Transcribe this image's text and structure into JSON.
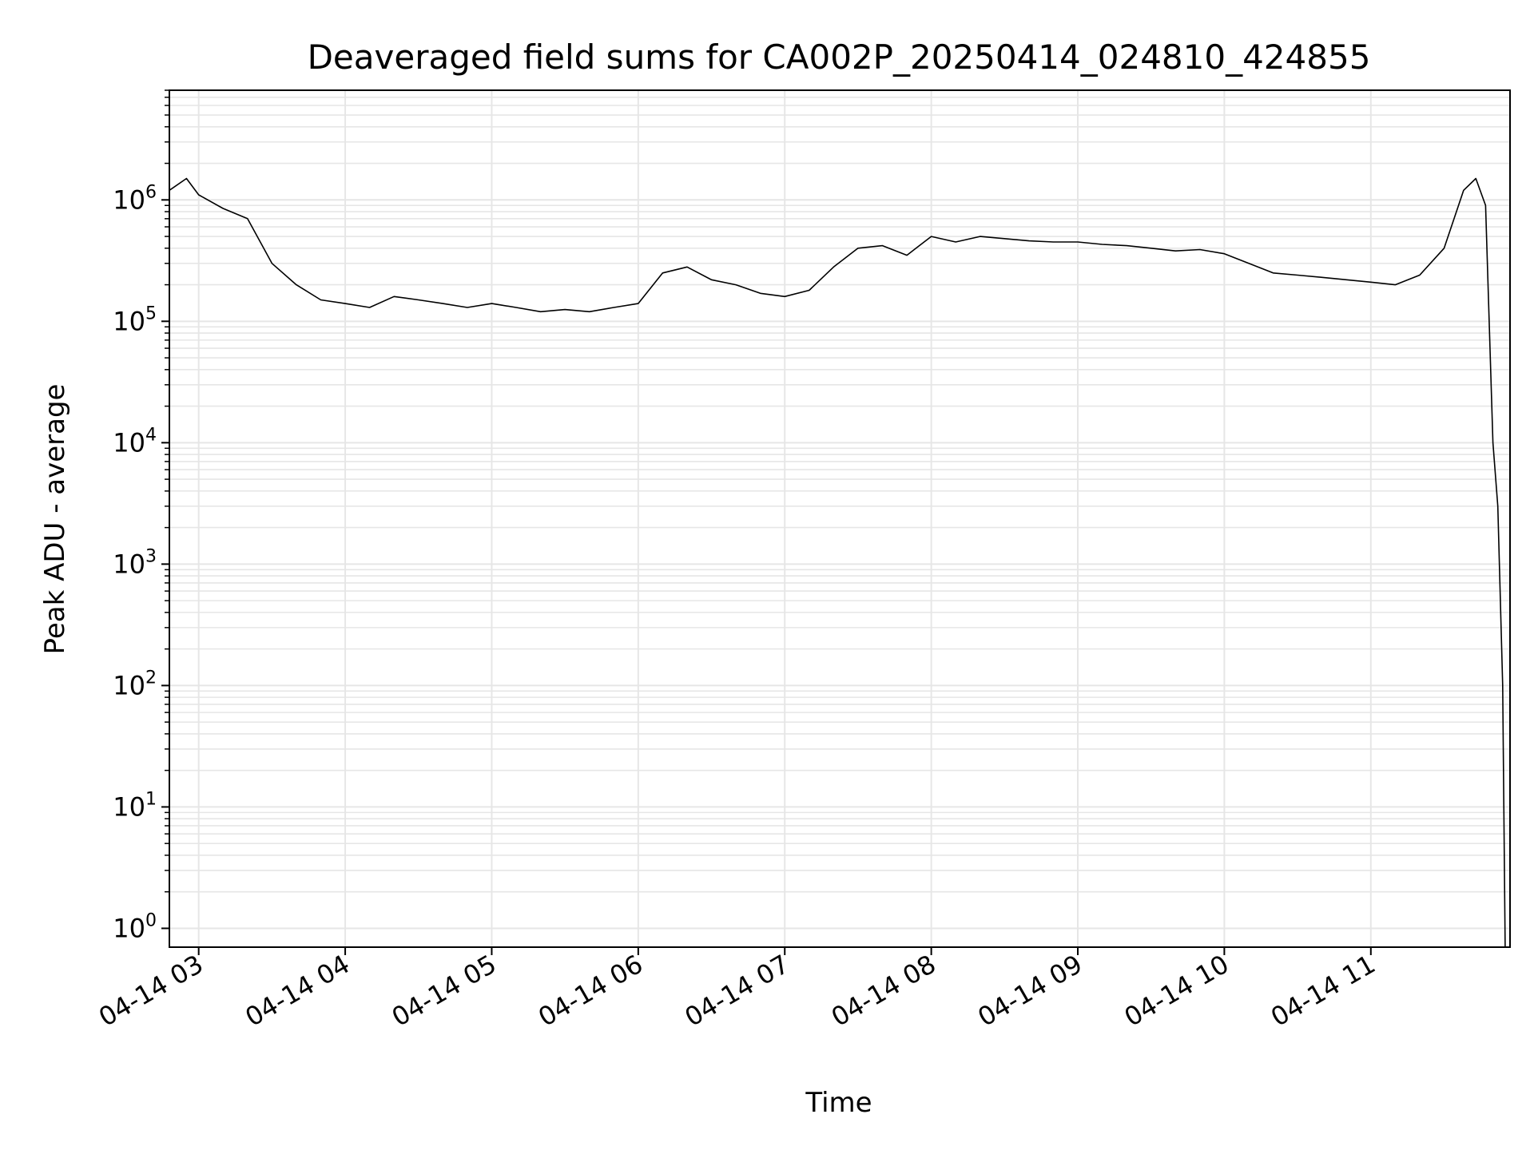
{
  "chart_data": {
    "type": "line",
    "title": "Deaveraged field sums for CA002P_20250414_024810_424855",
    "xlabel": "Time",
    "ylabel": "Peak ADU - average",
    "y_scale": "log",
    "ylim": [
      0.7,
      8000000
    ],
    "xlim": [
      "2025-04-14T02:48",
      "2025-04-14T11:57"
    ],
    "grid": true,
    "line_color": "#000000",
    "grid_color": "#e6e6e6",
    "x_ticks": [
      "04-14 03",
      "04-14 04",
      "04-14 05",
      "04-14 06",
      "04-14 07",
      "04-14 08",
      "04-14 09",
      "04-14 10",
      "04-14 11"
    ],
    "x_tick_times": [
      "2025-04-14T03:00",
      "2025-04-14T04:00",
      "2025-04-14T05:00",
      "2025-04-14T06:00",
      "2025-04-14T07:00",
      "2025-04-14T08:00",
      "2025-04-14T09:00",
      "2025-04-14T10:00",
      "2025-04-14T11:00"
    ],
    "y_ticks": [
      {
        "base": "10",
        "exp": "0",
        "value": 1
      },
      {
        "base": "10",
        "exp": "1",
        "value": 10
      },
      {
        "base": "10",
        "exp": "2",
        "value": 100
      },
      {
        "base": "10",
        "exp": "3",
        "value": 1000
      },
      {
        "base": "10",
        "exp": "4",
        "value": 10000
      },
      {
        "base": "10",
        "exp": "5",
        "value": 100000
      },
      {
        "base": "10",
        "exp": "6",
        "value": 1000000
      }
    ],
    "series": [
      {
        "x": [
          "2025-04-14T02:48",
          "2025-04-14T02:55",
          "2025-04-14T03:00",
          "2025-04-14T03:10",
          "2025-04-14T03:20",
          "2025-04-14T03:30",
          "2025-04-14T03:40",
          "2025-04-14T03:50",
          "2025-04-14T04:00",
          "2025-04-14T04:10",
          "2025-04-14T04:20",
          "2025-04-14T04:30",
          "2025-04-14T04:40",
          "2025-04-14T04:50",
          "2025-04-14T05:00",
          "2025-04-14T05:10",
          "2025-04-14T05:20",
          "2025-04-14T05:30",
          "2025-04-14T05:40",
          "2025-04-14T05:50",
          "2025-04-14T06:00",
          "2025-04-14T06:10",
          "2025-04-14T06:20",
          "2025-04-14T06:30",
          "2025-04-14T06:40",
          "2025-04-14T06:50",
          "2025-04-14T07:00",
          "2025-04-14T07:10",
          "2025-04-14T07:20",
          "2025-04-14T07:30",
          "2025-04-14T07:40",
          "2025-04-14T07:50",
          "2025-04-14T08:00",
          "2025-04-14T08:10",
          "2025-04-14T08:20",
          "2025-04-14T08:30",
          "2025-04-14T08:40",
          "2025-04-14T08:50",
          "2025-04-14T09:00",
          "2025-04-14T09:10",
          "2025-04-14T09:20",
          "2025-04-14T09:30",
          "2025-04-14T09:40",
          "2025-04-14T09:50",
          "2025-04-14T10:00",
          "2025-04-14T10:10",
          "2025-04-14T10:20",
          "2025-04-14T10:30",
          "2025-04-14T10:40",
          "2025-04-14T10:50",
          "2025-04-14T11:00",
          "2025-04-14T11:10",
          "2025-04-14T11:20",
          "2025-04-14T11:30",
          "2025-04-14T11:38",
          "2025-04-14T11:43",
          "2025-04-14T11:47",
          "2025-04-14T11:50",
          "2025-04-14T11:52",
          "2025-04-14T11:54",
          "2025-04-14T11:55"
        ],
        "y": [
          1200000,
          1500000,
          1100000,
          850000,
          700000,
          300000,
          200000,
          150000,
          140000,
          130000,
          160000,
          150000,
          140000,
          130000,
          140000,
          130000,
          120000,
          125000,
          120000,
          130000,
          140000,
          250000,
          280000,
          220000,
          200000,
          170000,
          160000,
          180000,
          280000,
          400000,
          420000,
          350000,
          500000,
          450000,
          500000,
          480000,
          460000,
          450000,
          450000,
          430000,
          420000,
          400000,
          380000,
          390000,
          360000,
          300000,
          250000,
          240000,
          230000,
          220000,
          210000,
          200000,
          240000,
          400000,
          1200000,
          1500000,
          900000,
          10000,
          3000,
          100,
          0.7
        ]
      }
    ]
  }
}
